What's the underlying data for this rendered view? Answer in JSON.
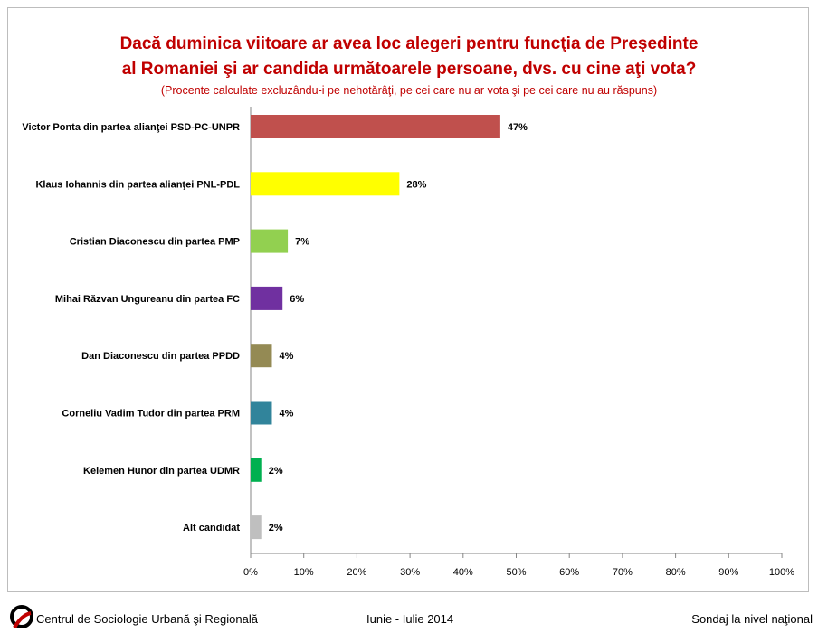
{
  "chart_data": {
    "type": "bar",
    "orientation": "horizontal",
    "title_line1": "Dacă duminica viitoare ar avea loc alegeri pentru funcţia de Preşedinte",
    "title_line2": "al Romaniei şi ar candida următoarele persoane, dvs. cu cine aţi vota?",
    "subtitle": "(Procente calculate excluzându-i pe nehotărâţi, pe cei care nu ar vota şi pe cei care nu au răspuns)",
    "categories": [
      "Victor Ponta din partea alianţei PSD-PC-UNPR",
      "Klaus Iohannis din partea alianţei PNL-PDL",
      "Cristian Diaconescu din partea PMP",
      "Mihai Răzvan Ungureanu din partea FC",
      "Dan Diaconescu din partea PPDD",
      "Corneliu Vadim Tudor din partea PRM",
      "Kelemen Hunor din partea UDMR",
      "Alt candidat"
    ],
    "values": [
      47,
      28,
      7,
      6,
      4,
      4,
      2,
      2
    ],
    "data_labels": [
      "47%",
      "28%",
      "7%",
      "6%",
      "4%",
      "4%",
      "2%",
      "2%"
    ],
    "colors": [
      "#c0504d",
      "#ffff00",
      "#92d050",
      "#7030a0",
      "#948a54",
      "#31849b",
      "#00b050",
      "#bfbfbf"
    ],
    "xlim": [
      0,
      100
    ],
    "xticks": [
      "0%",
      "10%",
      "20%",
      "30%",
      "40%",
      "50%",
      "60%",
      "70%",
      "80%",
      "90%",
      "100%"
    ],
    "grid": false
  },
  "footer": {
    "org": "Centrul de Sociologie Urbană şi Regională",
    "period": "Iunie - Iulie 2014",
    "scope": "Sondaj la nivel naţional"
  }
}
